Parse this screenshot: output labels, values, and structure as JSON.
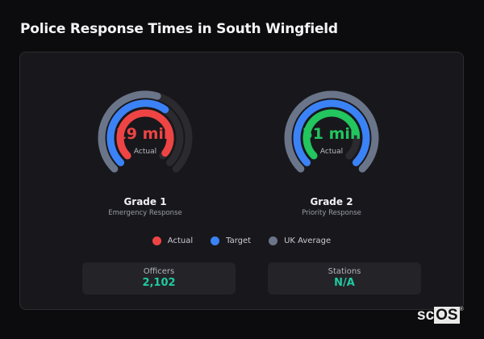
{
  "page": {
    "title": "Police Response Times in South Wingfield"
  },
  "gauges": [
    {
      "name": "Grade 1",
      "description": "Emergency Response",
      "value_label": "19 min",
      "sub_label": "Actual",
      "actual_color": "#ef4444",
      "fractions": {
        "uk_average": 0.56,
        "target": 0.63,
        "actual": 0.97
      }
    },
    {
      "name": "Grade 2",
      "description": "Priority Response",
      "value_label": "51 min",
      "sub_label": "Actual",
      "actual_color": "#22c55e",
      "fractions": {
        "uk_average": 1.0,
        "target": 1.0,
        "actual": 0.78
      }
    }
  ],
  "legend": [
    {
      "label": "Actual",
      "color": "#ef4444"
    },
    {
      "label": "Target",
      "color": "#3b82f6"
    },
    {
      "label": "UK Average",
      "color": "#6b7589"
    }
  ],
  "stats": [
    {
      "label": "Officers",
      "value": "2,102"
    },
    {
      "label": "Stations",
      "value": "N/A"
    }
  ],
  "branding": {
    "prefix": "sc",
    "suffix": "OS",
    "mark": "®"
  },
  "chart_data": {
    "type": "radial-bar",
    "title": "Police Response Times in South Wingfield",
    "categories": [
      "Grade 1 - Emergency Response",
      "Grade 2 - Priority Response"
    ],
    "series": [
      {
        "name": "Actual",
        "values_label": [
          "19 min",
          "51 min"
        ],
        "relative_fill": [
          0.97,
          0.78
        ]
      },
      {
        "name": "Target",
        "relative_fill": [
          0.63,
          1.0
        ]
      },
      {
        "name": "UK Average",
        "relative_fill": [
          0.56,
          1.0
        ]
      }
    ],
    "legend_position": "bottom",
    "arc_span_degrees": 270
  }
}
